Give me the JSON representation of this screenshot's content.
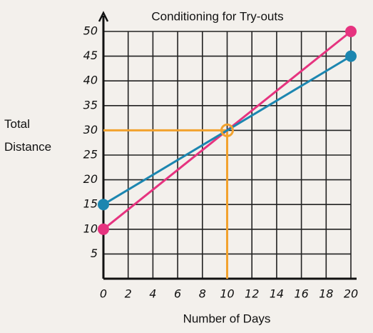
{
  "chart_data": {
    "type": "line",
    "title": "Conditioning for Try-outs",
    "x_label": "Number of Days",
    "y_label": "Total Distance",
    "x": [
      0,
      20
    ],
    "series": [
      {
        "color": "#e6337f",
        "values": [
          10,
          50
        ]
      },
      {
        "color": "#1c86b0",
        "values": [
          15,
          45
        ]
      }
    ],
    "guide": {
      "x": 10,
      "y": 30,
      "color": "#f2a22e"
    },
    "xlim": [
      0,
      20
    ],
    "ylim": [
      0,
      50
    ],
    "xticks": [
      0,
      2,
      4,
      6,
      8,
      10,
      12,
      14,
      16,
      18,
      20
    ],
    "yticks": [
      5,
      10,
      15,
      20,
      25,
      30,
      35,
      40,
      45,
      50
    ],
    "grid": true
  }
}
